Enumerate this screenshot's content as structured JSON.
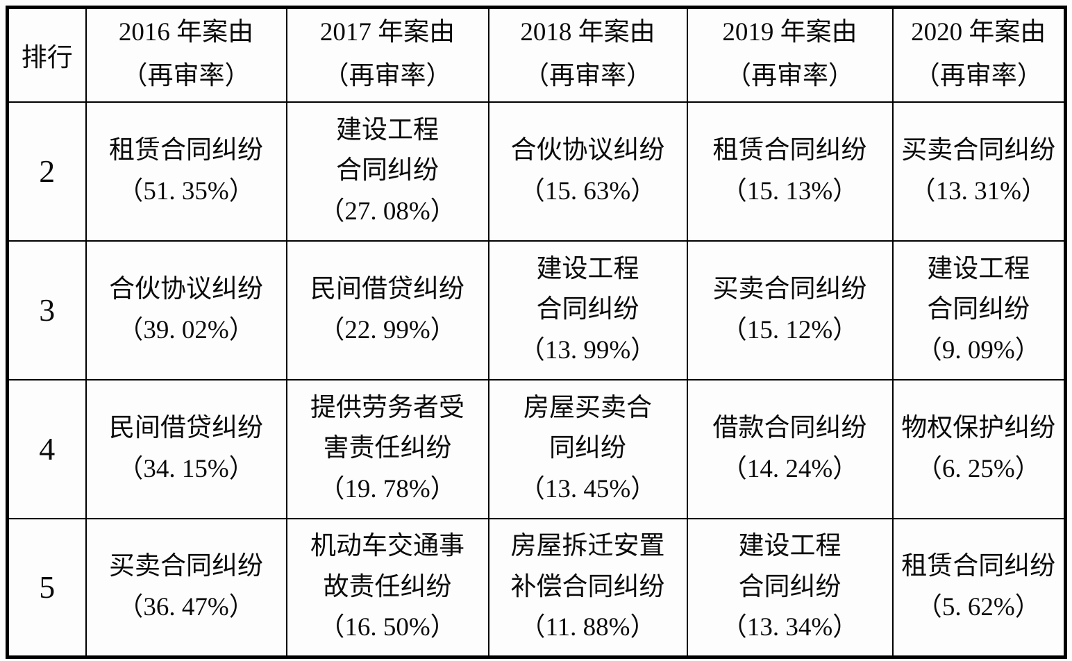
{
  "colors": {
    "border": "#000000",
    "background": "#fdfdfd",
    "text": "#0b0b0b"
  },
  "table": {
    "rank_header": "排行",
    "year_headers": [
      {
        "year_label": "2016 年案由",
        "rate_label": "（再审率）"
      },
      {
        "year_label": "2017 年案由",
        "rate_label": "（再审率）"
      },
      {
        "year_label": "2018 年案由",
        "rate_label": "（再审率）"
      },
      {
        "year_label": "2019 年案由",
        "rate_label": "（再审率）"
      },
      {
        "year_label": "2020 年案由",
        "rate_label": "（再审率）"
      }
    ],
    "rows": [
      {
        "rank": "2",
        "cells": [
          {
            "case_lines": [
              "租赁合同纠纷"
            ],
            "rate": "（51. 35%）"
          },
          {
            "case_lines": [
              "建设工程",
              "合同纠纷"
            ],
            "rate": "（27. 08%）"
          },
          {
            "case_lines": [
              "合伙协议纠纷"
            ],
            "rate": "（15. 63%）"
          },
          {
            "case_lines": [
              "租赁合同纠纷"
            ],
            "rate": "（15. 13%）"
          },
          {
            "case_lines": [
              "买卖合同纠纷"
            ],
            "rate": "（13. 31%）"
          }
        ]
      },
      {
        "rank": "3",
        "cells": [
          {
            "case_lines": [
              "合伙协议纠纷"
            ],
            "rate": "（39. 02%）"
          },
          {
            "case_lines": [
              "民间借贷纠纷"
            ],
            "rate": "（22. 99%）"
          },
          {
            "case_lines": [
              "建设工程",
              "合同纠纷"
            ],
            "rate": "（13. 99%）"
          },
          {
            "case_lines": [
              "买卖合同纠纷"
            ],
            "rate": "（15. 12%）"
          },
          {
            "case_lines": [
              "建设工程",
              "合同纠纷"
            ],
            "rate": "（9. 09%）"
          }
        ]
      },
      {
        "rank": "4",
        "cells": [
          {
            "case_lines": [
              "民间借贷纠纷"
            ],
            "rate": "（34. 15%）"
          },
          {
            "case_lines": [
              "提供劳务者受",
              "害责任纠纷"
            ],
            "rate": "（19. 78%）"
          },
          {
            "case_lines": [
              "房屋买卖合",
              "同纠纷"
            ],
            "rate": "（13. 45%）"
          },
          {
            "case_lines": [
              "借款合同纠纷"
            ],
            "rate": "（14. 24%）"
          },
          {
            "case_lines": [
              "物权保护纠纷"
            ],
            "rate": "（6. 25%）"
          }
        ]
      },
      {
        "rank": "5",
        "cells": [
          {
            "case_lines": [
              "买卖合同纠纷"
            ],
            "rate": "（36. 47%）"
          },
          {
            "case_lines": [
              "机动车交通事",
              "故责任纠纷"
            ],
            "rate": "（16. 50%）"
          },
          {
            "case_lines": [
              "房屋拆迁安置",
              "补偿合同纠纷"
            ],
            "rate": "（11. 88%）"
          },
          {
            "case_lines": [
              "建设工程",
              "合同纠纷"
            ],
            "rate": "（13. 34%）"
          },
          {
            "case_lines": [
              "租赁合同纠纷"
            ],
            "rate": "（5. 62%）"
          }
        ]
      }
    ]
  }
}
